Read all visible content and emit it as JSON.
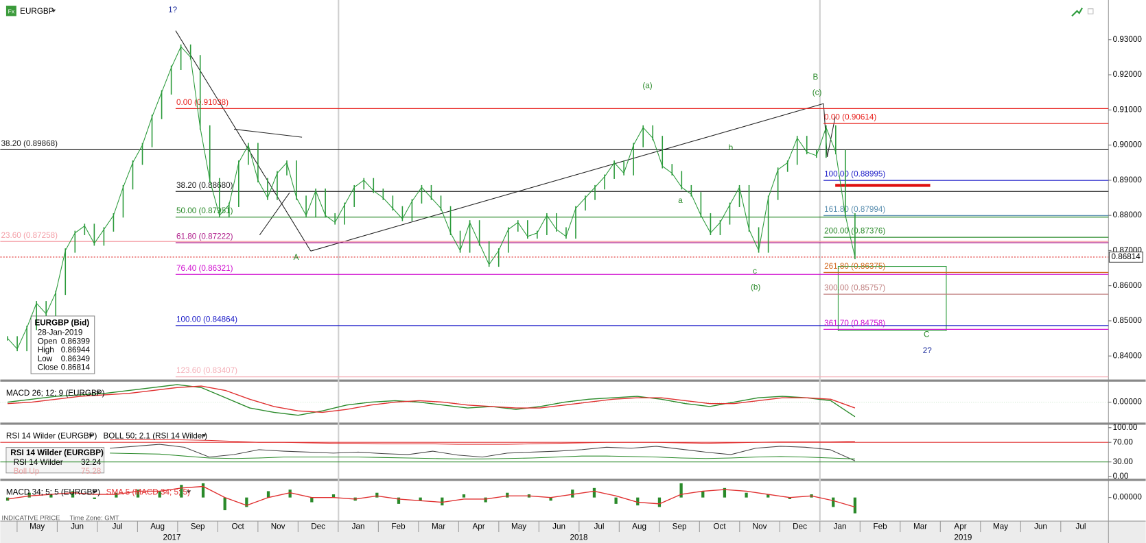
{
  "header": {
    "icon": "Fx"
  },
  "chart_data": [
    {
      "type": "price",
      "series": [
        {
          "name": "EURGBP",
          "color": "#2a9a3a",
          "values": [
            0.845,
            0.842,
            0.848,
            0.855,
            0.852,
            0.858,
            0.87,
            0.875,
            0.877,
            0.872,
            0.876,
            0.88,
            0.888,
            0.895,
            0.9,
            0.908,
            0.915,
            0.922,
            0.928,
            0.925,
            0.905,
            0.89,
            0.88,
            0.883,
            0.895,
            0.9,
            0.89,
            0.885,
            0.892,
            0.895,
            0.885,
            0.88,
            0.887,
            0.88,
            0.878,
            0.883,
            0.888,
            0.89,
            0.887,
            0.885,
            0.882,
            0.879,
            0.884,
            0.888,
            0.885,
            0.882,
            0.875,
            0.87,
            0.878,
            0.872,
            0.866,
            0.87,
            0.876,
            0.878,
            0.874,
            0.875,
            0.88,
            0.876,
            0.874,
            0.882,
            0.885,
            0.888,
            0.891,
            0.895,
            0.892,
            0.9,
            0.905,
            0.902,
            0.894,
            0.892,
            0.888,
            0.886,
            0.88,
            0.875,
            0.878,
            0.883,
            0.888,
            0.876,
            0.87,
            0.885,
            0.893,
            0.895,
            0.902,
            0.898,
            0.897,
            0.905,
            0.898,
            0.88,
            0.86814
          ]
        }
      ],
      "ylim": [
        0.8333,
        0.9392
      ],
      "yticks": [
        {
          "value": 0.84,
          "label": "0.84000"
        },
        {
          "value": 0.85,
          "label": "0.85000"
        },
        {
          "value": 0.86,
          "label": "0.86000"
        },
        {
          "value": 0.87,
          "label": "0.87000"
        },
        {
          "value": 0.88,
          "label": "0.88000"
        },
        {
          "value": 0.89,
          "label": "0.89000"
        },
        {
          "value": 0.9,
          "label": "0.90000"
        },
        {
          "value": 0.91,
          "label": "0.91000"
        },
        {
          "value": 0.92,
          "label": "0.92000"
        },
        {
          "value": 0.93,
          "label": "0.93000"
        }
      ],
      "last": 0.86814,
      "last_color": "#e03030",
      "fib_levels": [
        {
          "label": "0.00 (0.91038)",
          "value": 0.91038,
          "color": "#e8201c",
          "anchor": "left"
        },
        {
          "label": "38.20 (0.89868)",
          "value": 0.89868,
          "color": "#222222",
          "anchor": "axis"
        },
        {
          "label": "38.20 (0.88680)",
          "value": 0.8868,
          "color": "#222222",
          "anchor": "left"
        },
        {
          "label": "50.00 (0.87951)",
          "value": 0.87951,
          "color": "#2a8a2a",
          "anchor": "left"
        },
        {
          "label": "23.60 (0.87258)",
          "value": 0.87258,
          "color": "#f4a0a8",
          "anchor": "axis"
        },
        {
          "label": "61.80 (0.87222)",
          "value": 0.87222,
          "color": "#b0208c",
          "anchor": "left"
        },
        {
          "label": "76.40 (0.86321)",
          "value": 0.86321,
          "color": "#d010d0",
          "anchor": "left"
        },
        {
          "label": "100.00 (0.84864)",
          "value": 0.84864,
          "color": "#1c1cc8",
          "anchor": "left"
        },
        {
          "label": "123.60 (0.83407)",
          "value": 0.83407,
          "color": "#f4b0b8",
          "anchor": "left"
        },
        {
          "label": "0.00 (0.90614)",
          "value": 0.90614,
          "color": "#e8201c",
          "anchor": "right"
        },
        {
          "label": "100.00 (0.88995)",
          "value": 0.88995,
          "color": "#1c1cc8",
          "anchor": "right"
        },
        {
          "label": "161.80 (0.87994)",
          "value": 0.87994,
          "color": "#5b8fb0",
          "anchor": "right"
        },
        {
          "label": "200.00 (0.87376)",
          "value": 0.87376,
          "color": "#2a8a2a",
          "anchor": "right"
        },
        {
          "label": "261.80 (0.86375)",
          "value": 0.86375,
          "color": "#d2691e",
          "anchor": "right"
        },
        {
          "label": "300.00 (0.85757)",
          "value": 0.85757,
          "color": "#c08080",
          "anchor": "right"
        },
        {
          "label": "361.70 (0.84758)",
          "value": 0.84758,
          "color": "#d010d0",
          "anchor": "right"
        }
      ],
      "wave_labels": [
        {
          "text": "1?",
          "color": "#1c2c9c"
        },
        {
          "text": "A",
          "color": "#2a8a2a"
        },
        {
          "text": "(a)",
          "color": "#2a8a2a"
        },
        {
          "text": "B",
          "color": "#2a8a2a"
        },
        {
          "text": "(c)",
          "color": "#2a8a2a"
        },
        {
          "text": "b",
          "color": "#2a8a2a"
        },
        {
          "text": "a",
          "color": "#2a8a2a"
        },
        {
          "text": "c",
          "color": "#2a8a2a"
        },
        {
          "text": "(b)",
          "color": "#2a8a2a"
        },
        {
          "text": "C",
          "color": "#2a8a2a"
        },
        {
          "text": "2?",
          "color": "#1c2c9c"
        }
      ],
      "info_box": {
        "title": "EURGBP (Bid)",
        "date": "28-Jan-2019",
        "rows": [
          {
            "label": "Open",
            "value": 0.86399
          },
          {
            "label": "High",
            "value": 0.86944
          },
          {
            "label": "Low",
            "value": 0.86349
          },
          {
            "label": "Close",
            "value": 0.86814
          }
        ]
      }
    },
    {
      "type": "macd",
      "title": "MACD 26; 12; 9 (EURGBP)",
      "series": [
        {
          "color": "#2a8a2a",
          "values": [
            0,
            0.002,
            0.004,
            0.005,
            0.006,
            0.008,
            0.01,
            0.012,
            0.01,
            0.003,
            -0.004,
            -0.007,
            -0.009,
            -0.006,
            -0.002,
            0,
            0.001,
            0,
            -0.002,
            -0.004,
            -0.003,
            -0.005,
            -0.003,
            0,
            0.002,
            0.003,
            0.004,
            0.002,
            -0.001,
            -0.003,
            0,
            0.003,
            0.004,
            0.003,
            0.001,
            -0.01
          ]
        },
        {
          "color": "#e03030",
          "values": [
            -0.001,
            0,
            0.002,
            0.004,
            0.005,
            0.006,
            0.008,
            0.01,
            0.011,
            0.008,
            0.002,
            -0.003,
            -0.006,
            -0.007,
            -0.005,
            -0.002,
            0,
            0.001,
            0,
            -0.002,
            -0.003,
            -0.004,
            -0.004,
            -0.002,
            0,
            0.002,
            0.003,
            0.003,
            0.001,
            -0.001,
            -0.001,
            0.001,
            0.003,
            0.003,
            0.002,
            -0.004
          ]
        }
      ],
      "ylim": [
        -0.0135,
        0.0135
      ],
      "yticks": [
        {
          "value": 0,
          "label": "0.00000"
        }
      ]
    },
    {
      "type": "rsi",
      "title": "RSI 14 Wilder (EURGBP)",
      "overlay": "BOLL 50; 2.1 (RSI 14 Wilder)",
      "series": [
        {
          "color": "#444444",
          "values": [
            58,
            62,
            66,
            60,
            40,
            45,
            55,
            52,
            50,
            48,
            50,
            47,
            45,
            52,
            44,
            40,
            48,
            50,
            52,
            55,
            60,
            58,
            62,
            56,
            50,
            45,
            58,
            62,
            60,
            55,
            32.24
          ]
        },
        {
          "color": "#e03030",
          "values": [
            75,
            76,
            76,
            75,
            74,
            72,
            70,
            70,
            69,
            68,
            68,
            67,
            67,
            67,
            66,
            66,
            66,
            67,
            68,
            69,
            70,
            70,
            70,
            69,
            68,
            69,
            70,
            71,
            71,
            71,
            72
          ]
        },
        {
          "color": "#2a8a2a",
          "values": [
            48,
            47,
            46,
            42,
            38,
            37,
            38,
            40,
            40,
            40,
            40,
            39,
            38,
            37,
            36,
            36,
            37,
            38,
            40,
            42,
            42,
            41,
            40,
            38,
            37,
            38,
            40,
            41,
            40,
            38,
            36
          ]
        }
      ],
      "levels": [
        {
          "value": 70,
          "color": "#e03030"
        },
        {
          "value": 30,
          "color": "#2a8a2a"
        }
      ],
      "ylim": [
        0,
        100
      ],
      "yticks": [
        {
          "value": 0,
          "label": "0.00"
        },
        {
          "value": 30,
          "label": "30.00"
        },
        {
          "value": 70,
          "label": "70.00"
        },
        {
          "value": 100,
          "label": "100.00"
        }
      ],
      "readout": {
        "title": "RSI 14 Wilder (EURGBP)",
        "rows": [
          {
            "label": "RSI 14 Wilder",
            "value": 32.24
          },
          {
            "label": "Boll Up",
            "value": 75.28
          }
        ]
      }
    },
    {
      "type": "macd_hist",
      "title": "MACD 34; 5; 5 (EURGBP)",
      "overlay": "SMA 5 (MACD 34; 5; 5)",
      "series": [
        {
          "color": "#2a8a2a",
          "values": [
            -0.002,
            0.003,
            0.002,
            0.004,
            -0.001,
            0.003,
            0.005,
            0.004,
            0.008,
            0.009,
            -0.008,
            -0.006,
            0.004,
            0.005,
            -0.003,
            0.002,
            -0.002,
            0.003,
            -0.004,
            -0.002,
            -0.005,
            0.002,
            -0.003,
            0.003,
            0.002,
            -0.002,
            0.005,
            0.006,
            -0.004,
            -0.005,
            -0.006,
            0.009,
            0.004,
            0.006,
            0.003,
            0.002,
            -0.001,
            0.002,
            -0.006,
            -0.01
          ]
        },
        {
          "color": "#e03030",
          "values": [
            -0.001,
            0.001,
            0.002,
            0.003,
            0.002,
            0.002,
            0.004,
            0.004,
            0.006,
            0.007,
            0,
            -0.005,
            0,
            0.003,
            0,
            0,
            -0.001,
            0.001,
            -0.001,
            -0.002,
            -0.003,
            -0.001,
            -0.001,
            0.001,
            0.001,
            0,
            0.002,
            0.004,
            0.001,
            -0.003,
            -0.004,
            0.002,
            0.004,
            0.005,
            0.004,
            0.002,
            0,
            0.001,
            -0.002,
            -0.006
          ]
        }
      ],
      "ylim": [
        -0.014,
        0.01
      ],
      "yticks": [
        {
          "value": 0,
          "label": "0.00000"
        }
      ]
    }
  ],
  "time_axis": {
    "months": [
      "May",
      "Jun",
      "Jul",
      "Aug",
      "Sep",
      "Oct",
      "Nov",
      "Dec",
      "Jan",
      "Feb",
      "Mar",
      "Apr",
      "May",
      "Jun",
      "Jul",
      "Aug",
      "Sep",
      "Oct",
      "Nov",
      "Dec",
      "Jan",
      "Feb",
      "Mar",
      "Apr",
      "May",
      "Jun",
      "Jul"
    ],
    "years": [
      "2017",
      "2018",
      "2019"
    ]
  },
  "footer": {
    "left": "INDICATIVE PRICE",
    "right": "Time Zone: GMT"
  }
}
